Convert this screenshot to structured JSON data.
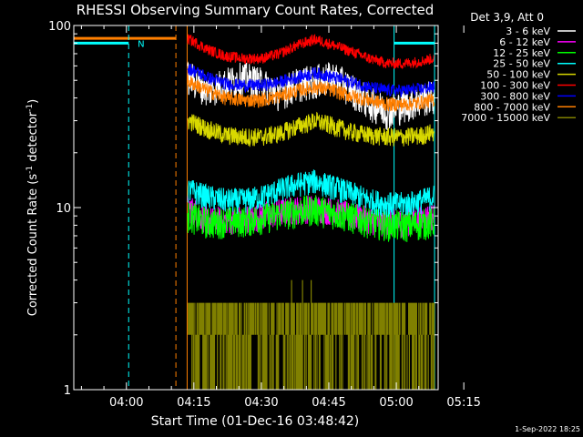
{
  "chart_data": {
    "type": "line",
    "title": "RHESSI Observing Summary Count Rates, Corrected",
    "xlabel": "Start Time (01-Dec-16 03:48:42)",
    "ylabel": "Corrected Count Rate (s⁻¹ detector⁻¹)",
    "ylabel_main": "Corrected Count Rate (s",
    "ylabel_sup1": "-1",
    "ylabel_mid": " detector",
    "ylabel_sup2": "-1",
    "ylabel_end": ")",
    "yscale": "log",
    "ylim": [
      1,
      100
    ],
    "xlim_min": [
      -11.7,
      69.3
    ],
    "xticks": [
      {
        "value": 0,
        "label": "04:00"
      },
      {
        "value": 15,
        "label": "04:15"
      },
      {
        "value": 30,
        "label": "04:30"
      },
      {
        "value": 45,
        "label": "04:45"
      },
      {
        "value": 60,
        "label": "05:00"
      },
      {
        "value": 75,
        "label": "05:15"
      }
    ],
    "yticks": [
      {
        "value": 1,
        "label": "1"
      },
      {
        "value": 10,
        "label": "10"
      },
      {
        "value": 100,
        "label": "100"
      }
    ],
    "legend_title": "Det 3,9, Att 0",
    "legend_position": "top-right, outside plot",
    "series": [
      {
        "name": "3 - 6 keV",
        "color": "#ffffff",
        "x": [
          14,
          18,
          22,
          26,
          30,
          34,
          38,
          42,
          46,
          50,
          54,
          58,
          62,
          66,
          68
        ],
        "values": [
          52,
          45,
          48,
          52,
          48,
          43,
          48,
          50,
          52,
          45,
          38,
          34,
          37,
          40,
          41
        ]
      },
      {
        "name": "6 - 12 keV",
        "color": "#ff00ff",
        "x": [
          14,
          18,
          22,
          26,
          30,
          34,
          38,
          42,
          46,
          50,
          54,
          58,
          62,
          66,
          68
        ],
        "values": [
          10,
          8.5,
          8.6,
          8.7,
          9,
          9.5,
          9.8,
          10,
          9.6,
          9,
          8.6,
          8.3,
          8.4,
          8.8,
          9
        ]
      },
      {
        "name": "12 - 25 keV",
        "color": "#00ff00",
        "x": [
          14,
          18,
          22,
          26,
          30,
          34,
          38,
          42,
          46,
          50,
          54,
          58,
          62,
          66,
          68
        ],
        "values": [
          9,
          8.3,
          8.4,
          8.5,
          8.8,
          9.2,
          9.6,
          9.8,
          9.4,
          8.9,
          8.4,
          8.1,
          8,
          8.2,
          8.3
        ]
      },
      {
        "name": "25 - 50 keV",
        "color": "#00ffff",
        "x": [
          14,
          18,
          22,
          26,
          30,
          34,
          38,
          42,
          46,
          50,
          54,
          58,
          62,
          66,
          68
        ],
        "values": [
          12.5,
          11.5,
          11,
          11,
          11.5,
          12.5,
          13.5,
          14,
          13,
          12,
          11,
          10.5,
          10.5,
          11,
          11.5
        ]
      },
      {
        "name": "50 - 100 keV",
        "color": "#d8d800",
        "x": [
          14,
          18,
          22,
          26,
          30,
          34,
          38,
          42,
          46,
          50,
          54,
          58,
          62,
          66,
          68
        ],
        "values": [
          30,
          27,
          25,
          24.5,
          24.5,
          25.5,
          28,
          30,
          28,
          26,
          25,
          24.5,
          24.5,
          25,
          26
        ]
      },
      {
        "name": "100 - 300 keV",
        "color": "#ff0000",
        "x": [
          14,
          18,
          22,
          26,
          30,
          34,
          38,
          42,
          46,
          50,
          54,
          58,
          62,
          66,
          68
        ],
        "values": [
          84,
          74,
          68,
          66,
          66,
          70,
          78,
          84,
          78,
          72,
          66,
          62,
          62,
          64,
          66
        ]
      },
      {
        "name": "300 - 800 keV",
        "color": "#0000ff",
        "x": [
          14,
          18,
          22,
          26,
          30,
          34,
          38,
          42,
          46,
          50,
          54,
          58,
          62,
          66,
          68
        ],
        "values": [
          58,
          52,
          48,
          47,
          47,
          49,
          52,
          55,
          52,
          49,
          46,
          44,
          44,
          45,
          46
        ]
      },
      {
        "name": "800 - 7000 keV",
        "color": "#ff7f00",
        "x": [
          14,
          18,
          22,
          26,
          30,
          34,
          38,
          42,
          46,
          50,
          54,
          58,
          62,
          66,
          68
        ],
        "values": [
          49,
          44,
          40,
          39,
          39,
          41,
          44,
          46,
          44,
          41,
          39,
          37,
          37,
          38,
          39
        ]
      },
      {
        "name": "7000 - 15000 keV",
        "color": "#808000",
        "x": [
          14,
          18,
          22,
          26,
          30,
          34,
          38,
          42,
          46,
          50,
          54,
          58,
          62,
          66,
          68
        ],
        "values": [
          2,
          2,
          2,
          2,
          2,
          2.5,
          3,
          3,
          2.5,
          2,
          2,
          2,
          2,
          2,
          2
        ]
      }
    ],
    "extras": {
      "vertical_dashed": [
        {
          "x": 0.5,
          "color": "#00ffff"
        },
        {
          "x": 11,
          "color": "#ff7f00"
        }
      ],
      "vertical_solid": [
        {
          "x": 13.5,
          "color": "#ff7f00"
        },
        {
          "x": 59.5,
          "color": "#00ffff"
        },
        {
          "x": 68.5,
          "color": "#00ffff"
        }
      ],
      "pre_orange_level": 85,
      "pre_cyan_level": 80,
      "post_cyan_level": 80,
      "n_marker": "N"
    }
  },
  "footer_timestamp": "1-Sep-2022 18:25"
}
